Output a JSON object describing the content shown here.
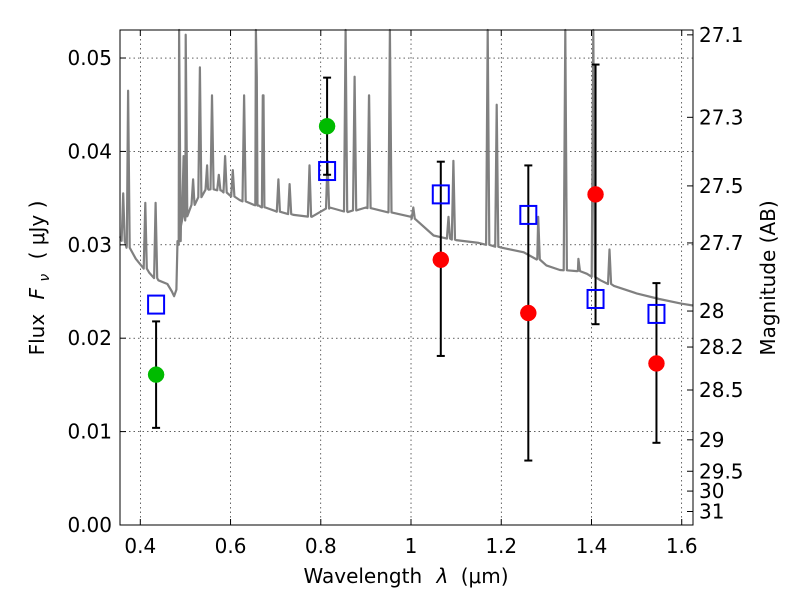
{
  "chart_data": {
    "type": "scatter",
    "xlabel_prefix": "Wavelength",
    "xlabel_symbol": "λ",
    "xlabel_unit": "(μm)",
    "ylabel_prefix": "Flux",
    "ylabel_symbol": "F",
    "ylabel_sub": "ν",
    "ylabel_unit": "( μJy )",
    "y2label": "Magnitude (AB)",
    "xlim": [
      0.355,
      1.625
    ],
    "ylim": [
      0.0,
      0.053
    ],
    "grid": true,
    "x_ticks": [
      0.4,
      0.6,
      0.8,
      1.0,
      1.2,
      1.4,
      1.6
    ],
    "x_tick_labels": [
      "0.4",
      "0.6",
      "0.8",
      "1",
      "1.2",
      "1.4",
      "1.6"
    ],
    "y_ticks": [
      0.0,
      0.01,
      0.02,
      0.03,
      0.04,
      0.05
    ],
    "y_tick_labels": [
      "0.00",
      "0.01",
      "0.02",
      "0.03",
      "0.04",
      "0.05"
    ],
    "y2_ticks": [
      27.1,
      27.3,
      27.5,
      27.7,
      28.0,
      28.2,
      28.5,
      29.0,
      29.5,
      30.0,
      31.0
    ],
    "y2_tick_labels": [
      "27.1",
      "27.3",
      "27.5",
      "27.7",
      "28",
      "28.2",
      "28.5",
      "29",
      "29.5",
      "30",
      "31"
    ],
    "colors": {
      "spectrum": "#808080",
      "green": "#00bb00",
      "red": "#ff0000",
      "model": "#0000ff",
      "errorbar": "#000000"
    },
    "series": [
      {
        "marker": "circle",
        "color": "green",
        "points": [
          {
            "x": 0.435,
            "y": 0.0161,
            "yerr": [
              0.0057,
              0.0057
            ]
          },
          {
            "x": 0.814,
            "y": 0.0427,
            "yerr": [
              0.0052,
              0.0052
            ]
          }
        ]
      },
      {
        "marker": "circle",
        "color": "red",
        "points": [
          {
            "x": 1.066,
            "y": 0.0284,
            "yerr": [
              0.0103,
              0.0105
            ]
          },
          {
            "x": 1.26,
            "y": 0.0227,
            "yerr": [
              0.0158,
              0.0158
            ]
          },
          {
            "x": 1.409,
            "y": 0.0354,
            "yerr": [
              0.0139,
              0.0139
            ]
          },
          {
            "x": 1.544,
            "y": 0.0173,
            "yerr": [
              0.0085,
              0.0086
            ]
          }
        ]
      },
      {
        "marker": "open-square",
        "color": "model",
        "points": [
          {
            "x": 0.435,
            "y": 0.0236
          },
          {
            "x": 0.814,
            "y": 0.0379
          },
          {
            "x": 1.066,
            "y": 0.0354
          },
          {
            "x": 1.26,
            "y": 0.0332
          },
          {
            "x": 1.409,
            "y": 0.0242
          },
          {
            "x": 1.544,
            "y": 0.0226
          }
        ]
      }
    ],
    "spectrum": {
      "continuum": [
        [
          0.355,
          0.0309
        ],
        [
          0.37,
          0.0299
        ],
        [
          0.39,
          0.0285
        ],
        [
          0.42,
          0.027
        ],
        [
          0.44,
          0.0262
        ],
        [
          0.46,
          0.0258
        ],
        [
          0.47,
          0.025
        ],
        [
          0.475,
          0.0245
        ],
        [
          0.48,
          0.0252
        ],
        [
          0.485,
          0.03
        ],
        [
          0.49,
          0.032
        ],
        [
          0.5,
          0.033
        ],
        [
          0.52,
          0.0345
        ],
        [
          0.55,
          0.036
        ],
        [
          0.58,
          0.0358
        ],
        [
          0.62,
          0.0348
        ],
        [
          0.66,
          0.0342
        ],
        [
          0.7,
          0.0336
        ],
        [
          0.74,
          0.0332
        ],
        [
          0.78,
          0.033
        ],
        [
          0.82,
          0.034
        ],
        [
          0.86,
          0.0335
        ],
        [
          0.9,
          0.034
        ],
        [
          0.95,
          0.0335
        ],
        [
          1.0,
          0.033
        ],
        [
          1.05,
          0.031
        ],
        [
          1.1,
          0.0305
        ],
        [
          1.15,
          0.0302
        ],
        [
          1.2,
          0.0297
        ],
        [
          1.25,
          0.0292
        ],
        [
          1.28,
          0.0285
        ],
        [
          1.3,
          0.0278
        ],
        [
          1.33,
          0.0273
        ],
        [
          1.37,
          0.0272
        ],
        [
          1.39,
          0.0269
        ],
        [
          1.42,
          0.0262
        ],
        [
          1.45,
          0.0256
        ],
        [
          1.5,
          0.0248
        ],
        [
          1.55,
          0.0242
        ],
        [
          1.6,
          0.0237
        ],
        [
          1.625,
          0.0235
        ]
      ],
      "lines": [
        [
          0.362,
          0.0355
        ],
        [
          0.373,
          0.0465
        ],
        [
          0.411,
          0.0345
        ],
        [
          0.434,
          0.0345
        ],
        [
          0.486,
          0.06
        ],
        [
          0.496,
          0.0395
        ],
        [
          0.5007,
          0.0525
        ],
        [
          0.517,
          0.037
        ],
        [
          0.532,
          0.049
        ],
        [
          0.548,
          0.0385
        ],
        [
          0.559,
          0.046
        ],
        [
          0.574,
          0.0375
        ],
        [
          0.588,
          0.0395
        ],
        [
          0.605,
          0.038
        ],
        [
          0.63,
          0.046
        ],
        [
          0.6563,
          0.06
        ],
        [
          0.6583,
          0.048
        ],
        [
          0.6716,
          0.046
        ],
        [
          0.673,
          0.046
        ],
        [
          0.706,
          0.037
        ],
        [
          0.731,
          0.0365
        ],
        [
          0.775,
          0.0385
        ],
        [
          0.815,
          0.039
        ],
        [
          0.855,
          0.06
        ],
        [
          0.875,
          0.048
        ],
        [
          0.907,
          0.046
        ],
        [
          0.9069,
          0.046
        ],
        [
          0.9532,
          0.06
        ],
        [
          1.005,
          0.034
        ],
        [
          1.083,
          0.033
        ],
        [
          1.094,
          0.039
        ],
        [
          1.17,
          0.06
        ],
        [
          1.19,
          0.045
        ],
        [
          1.282,
          0.033
        ],
        [
          1.342,
          0.06
        ],
        [
          1.371,
          0.0285
        ],
        [
          1.404,
          0.057
        ],
        [
          1.44,
          0.0295
        ]
      ]
    }
  }
}
